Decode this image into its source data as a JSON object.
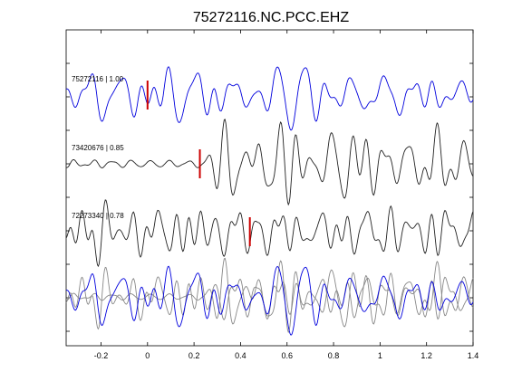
{
  "chart_data": {
    "type": "line",
    "title": "75272116.NC.PCC.EHZ",
    "xlabel": "",
    "ylabel": "",
    "xlim": [
      -0.35,
      1.4
    ],
    "x_ticks": [
      -0.2,
      0,
      0.2,
      0.4,
      0.6,
      0.8,
      1,
      1.2,
      1.4
    ],
    "x_tick_labels": [
      "-0.2",
      "0",
      "0.2",
      "0.4",
      "0.6",
      "0.8",
      "1",
      "1.2",
      "1.4"
    ],
    "grid": false,
    "colors": {
      "master": "#0000dd",
      "neighbor": "#222222",
      "overlay_neighbor": "#888888",
      "pick": "#cc0000"
    },
    "traces": [
      {
        "id": "75272116",
        "label": "75272116 | 1.00",
        "cc": 1.0,
        "pick_time": 0.0,
        "color": "master",
        "seed": 11,
        "onset": -0.35,
        "noise_amp": 0.35,
        "signal_amp": 1.0
      },
      {
        "id": "73420676",
        "label": "73420676 | 0.85",
        "cc": 0.85,
        "pick_time": 0.225,
        "color": "neighbor",
        "seed": 23,
        "onset": 0.22,
        "noise_amp": 0.12,
        "signal_amp": 1.05
      },
      {
        "id": "72273340",
        "label": "72273340 | 0.78",
        "cc": 0.78,
        "pick_time": 0.44,
        "color": "neighbor",
        "seed": 37,
        "onset": -0.35,
        "noise_amp": 0.4,
        "signal_amp": 0.95
      }
    ],
    "overlay": {
      "series": [
        "75272116",
        "73420676",
        "72273340"
      ],
      "colors": [
        "master",
        "overlay_neighbor",
        "overlay_neighbor"
      ]
    }
  }
}
